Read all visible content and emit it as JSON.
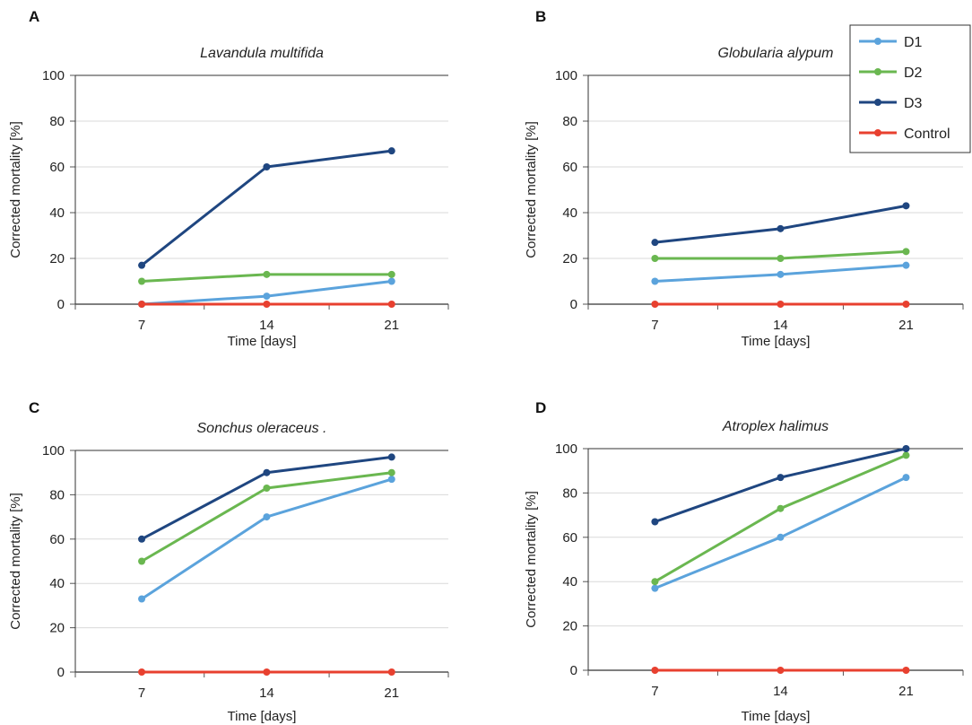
{
  "legend": {
    "entries": [
      {
        "name": "D1",
        "color": "#5ba3dc"
      },
      {
        "name": "D2",
        "color": "#6ab750"
      },
      {
        "name": "D3",
        "color": "#1f4680"
      },
      {
        "name": "Control",
        "color": "#e8402f"
      }
    ],
    "placement": "top-right"
  },
  "chart_data": [
    {
      "type": "line",
      "panel": "A",
      "title": "Lavandula multifida",
      "xlabel": "Time [days]",
      "ylabel": "Corrected mortality [%]",
      "x": [
        7,
        14,
        21
      ],
      "xticks": [
        "7",
        "14",
        "21"
      ],
      "ylim": [
        0,
        100
      ],
      "yticks": [
        0,
        20,
        40,
        60,
        80,
        100
      ],
      "grid": true,
      "series": [
        {
          "name": "D1",
          "values": [
            0,
            3.5,
            10
          ]
        },
        {
          "name": "D2",
          "values": [
            10,
            13,
            13
          ]
        },
        {
          "name": "D3",
          "values": [
            17,
            60,
            67
          ]
        },
        {
          "name": "Control",
          "values": [
            0,
            0,
            0
          ]
        }
      ]
    },
    {
      "type": "line",
      "panel": "B",
      "title": "Globularia alypum",
      "xlabel": "Time [days]",
      "ylabel": "Corrected mortality [%]",
      "x": [
        7,
        14,
        21
      ],
      "xticks": [
        "7",
        "14",
        "21"
      ],
      "ylim": [
        0,
        100
      ],
      "yticks": [
        0,
        20,
        40,
        60,
        80,
        100
      ],
      "grid": true,
      "series": [
        {
          "name": "D1",
          "values": [
            10,
            13,
            17
          ]
        },
        {
          "name": "D2",
          "values": [
            20,
            20,
            23
          ]
        },
        {
          "name": "D3",
          "values": [
            27,
            33,
            43
          ]
        },
        {
          "name": "Control",
          "values": [
            0,
            0,
            0
          ]
        }
      ]
    },
    {
      "type": "line",
      "panel": "C",
      "title": "Sonchus oleraceus .",
      "xlabel": "Time [days]",
      "ylabel": "Corrected mortality [%]",
      "x": [
        7,
        14,
        21
      ],
      "xticks": [
        "7",
        "14",
        "21"
      ],
      "ylim": [
        0,
        100
      ],
      "yticks": [
        0,
        20,
        40,
        60,
        80,
        100
      ],
      "grid": true,
      "series": [
        {
          "name": "D1",
          "values": [
            33,
            70,
            87
          ]
        },
        {
          "name": "D2",
          "values": [
            50,
            83,
            90
          ]
        },
        {
          "name": "D3",
          "values": [
            60,
            90,
            97
          ]
        },
        {
          "name": "Control",
          "values": [
            0,
            0,
            0
          ]
        }
      ]
    },
    {
      "type": "line",
      "panel": "D",
      "title": "Atroplex halimus",
      "xlabel": "Time [days]",
      "ylabel": "Corrected mortality [%]",
      "x": [
        7,
        14,
        21
      ],
      "xticks": [
        "7",
        "14",
        "21"
      ],
      "ylim": [
        0,
        100
      ],
      "yticks": [
        0,
        20,
        40,
        60,
        80,
        100
      ],
      "grid": true,
      "series": [
        {
          "name": "D1",
          "values": [
            37,
            60,
            87
          ]
        },
        {
          "name": "D2",
          "values": [
            40,
            73,
            97
          ]
        },
        {
          "name": "D3",
          "values": [
            67,
            87,
            100
          ]
        },
        {
          "name": "Control",
          "values": [
            0,
            0,
            0
          ]
        }
      ]
    }
  ]
}
